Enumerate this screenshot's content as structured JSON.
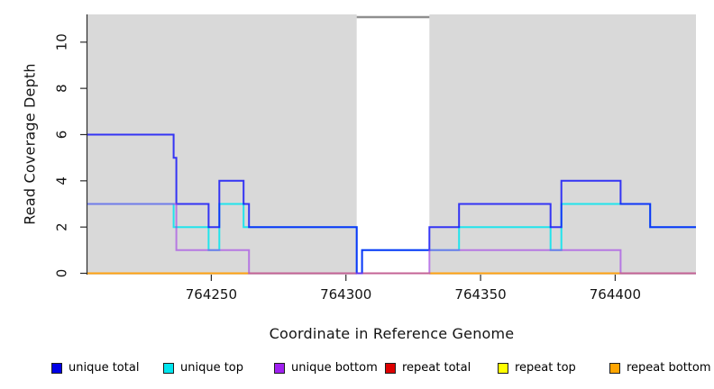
{
  "chart_data": {
    "type": "line",
    "subtype": "step-coverage",
    "title": "",
    "xlabel": "Coordinate in Reference Genome",
    "ylabel": "Read Coverage Depth",
    "xlim": [
      764204,
      764430
    ],
    "ylim": [
      0,
      11.2
    ],
    "grid": false,
    "plot_background": "#d9d9d9",
    "background": "#ffffff",
    "axis_color": "#2b2b2b",
    "x_ticks": [
      {
        "value": 764250,
        "label": "764250"
      },
      {
        "value": 764300,
        "label": "764300"
      },
      {
        "value": 764350,
        "label": "764350"
      },
      {
        "value": 764400,
        "label": "764400"
      }
    ],
    "y_ticks": [
      {
        "value": 0,
        "label": "0"
      },
      {
        "value": 2,
        "label": "2"
      },
      {
        "value": 4,
        "label": "4"
      },
      {
        "value": 6,
        "label": "6"
      },
      {
        "value": 8,
        "label": "8"
      },
      {
        "value": 10,
        "label": "10"
      }
    ],
    "highlight_band": {
      "from": 764304,
      "to": 764331,
      "color": "#ffffff",
      "marker_color": "#8f8f8f"
    },
    "series": [
      {
        "id": "repeat-total",
        "name": "repeat total",
        "stroke": "rgba(221,0,0,1)",
        "edges": [
          764204,
          764430
        ],
        "values": [
          0
        ]
      },
      {
        "id": "repeat-top",
        "name": "repeat top",
        "stroke": "rgba(255,255,0,1)",
        "edges": [
          764204,
          764430
        ],
        "values": [
          0
        ]
      },
      {
        "id": "repeat-bottom",
        "name": "repeat bottom",
        "stroke": "rgba(255,163,19,1)",
        "edges": [
          764204,
          764430
        ],
        "values": [
          0
        ]
      },
      {
        "id": "unique-top",
        "name": "unique top",
        "stroke": "rgba(0,229,238,0.85)",
        "edges": [
          764204,
          764236,
          764249,
          764253,
          764262,
          764304,
          764306,
          764342,
          764376,
          764380,
          764413,
          764430
        ],
        "values": [
          3,
          2,
          1,
          3,
          2,
          0,
          1,
          2,
          1,
          3,
          2
        ]
      },
      {
        "id": "unique-total",
        "name": "unique total",
        "stroke": "rgba(10,10,250,0.8)",
        "edges": [
          764204,
          764236,
          764237,
          764249,
          764253,
          764262,
          764264,
          764304,
          764306,
          764331,
          764342,
          764376,
          764380,
          764402,
          764413,
          764430
        ],
        "values": [
          6,
          5,
          3,
          2,
          4,
          3,
          2,
          0,
          1,
          2,
          3,
          2,
          4,
          3,
          2
        ]
      },
      {
        "id": "unique-bottom",
        "name": "unique bottom",
        "stroke": "rgba(160,60,230,0.62)",
        "edges": [
          764204,
          764237,
          764264,
          764331,
          764402,
          764430
        ],
        "values": [
          3,
          1,
          0,
          1,
          0
        ]
      }
    ],
    "legend": [
      {
        "label": "unique total",
        "color": "#0000e6"
      },
      {
        "label": "unique top",
        "color": "#00e5ee"
      },
      {
        "label": "unique bottom",
        "color": "#a020f0"
      },
      {
        "label": "repeat total",
        "color": "#dd0000"
      },
      {
        "label": "repeat top",
        "color": "#ffff00"
      },
      {
        "label": "repeat bottom",
        "color": "#ffa500"
      }
    ]
  }
}
